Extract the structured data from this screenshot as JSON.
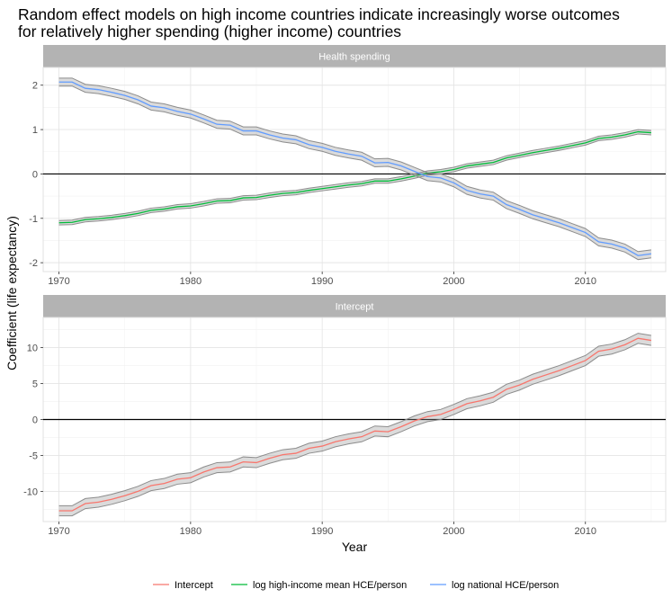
{
  "title_line1": "Random effect models on high income countries indicate increasingly worse outcomes",
  "title_line2": "for relatively higher spending (higher income) countries",
  "xlabel": "Year",
  "ylabel": "Coefficient (life expectancy)",
  "legend": [
    {
      "label": "Intercept",
      "color": "#F8766D"
    },
    {
      "label": "log high-income mean HCE/person",
      "color": "#00BA38"
    },
    {
      "label": "log national HCE/person",
      "color": "#619CFF"
    }
  ],
  "chart_data": [
    {
      "type": "line",
      "panel_label": "Health spending",
      "x_ticks": [
        "1970",
        "1980",
        "1990",
        "2000",
        "2010"
      ],
      "y_ticks": [
        "-2",
        "-1",
        "0",
        "1",
        "2"
      ],
      "xlim": [
        1968.8,
        2016.1
      ],
      "ylim": [
        -2.2,
        2.4
      ],
      "hline": 0,
      "grid": true,
      "x": [
        1970,
        1971,
        1972,
        1973,
        1974,
        1975,
        1976,
        1977,
        1978,
        1979,
        1980,
        1981,
        1982,
        1983,
        1984,
        1985,
        1986,
        1987,
        1988,
        1989,
        1990,
        1991,
        1992,
        1993,
        1994,
        1995,
        1996,
        1997,
        1998,
        1999,
        2000,
        2001,
        2002,
        2003,
        2004,
        2005,
        2006,
        2007,
        2008,
        2009,
        2010,
        2011,
        2012,
        2013,
        2014,
        2015
      ],
      "series": [
        {
          "name": "log high-income mean HCE/person",
          "color": "#00BA38",
          "band_halfwidth": 0.05,
          "values": [
            -1.1,
            -1.09,
            -1.03,
            -1.01,
            -0.98,
            -0.94,
            -0.89,
            -0.82,
            -0.79,
            -0.74,
            -0.72,
            -0.67,
            -0.61,
            -0.6,
            -0.54,
            -0.53,
            -0.48,
            -0.44,
            -0.42,
            -0.37,
            -0.33,
            -0.29,
            -0.25,
            -0.22,
            -0.16,
            -0.16,
            -0.11,
            -0.05,
            0.02,
            0.05,
            0.1,
            0.18,
            0.22,
            0.26,
            0.36,
            0.42,
            0.48,
            0.53,
            0.58,
            0.64,
            0.7,
            0.8,
            0.83,
            0.88,
            0.95,
            0.93
          ]
        },
        {
          "name": "log national HCE/person",
          "color": "#619CFF",
          "band_halfwidth": 0.09,
          "values": [
            2.07,
            2.07,
            1.93,
            1.9,
            1.84,
            1.77,
            1.67,
            1.53,
            1.49,
            1.41,
            1.35,
            1.24,
            1.12,
            1.1,
            0.97,
            0.97,
            0.88,
            0.81,
            0.77,
            0.66,
            0.6,
            0.51,
            0.45,
            0.4,
            0.25,
            0.26,
            0.18,
            0.06,
            -0.06,
            -0.09,
            -0.2,
            -0.37,
            -0.45,
            -0.5,
            -0.69,
            -0.8,
            -0.92,
            -1.01,
            -1.1,
            -1.21,
            -1.32,
            -1.53,
            -1.58,
            -1.67,
            -1.84,
            -1.8
          ]
        }
      ]
    },
    {
      "type": "line",
      "panel_label": "Intercept",
      "x_ticks": [
        "1970",
        "1980",
        "1990",
        "2000",
        "2010"
      ],
      "y_ticks": [
        "-10",
        "-5",
        "0",
        "5",
        "10"
      ],
      "xlim": [
        1968.8,
        2016.1
      ],
      "ylim": [
        -14.2,
        14.2
      ],
      "hline": 0,
      "grid": true,
      "x": [
        1970,
        1971,
        1972,
        1973,
        1974,
        1975,
        1976,
        1977,
        1978,
        1979,
        1980,
        1981,
        1982,
        1983,
        1984,
        1985,
        1986,
        1987,
        1988,
        1989,
        1990,
        1991,
        1992,
        1993,
        1994,
        1995,
        1996,
        1997,
        1998,
        1999,
        2000,
        2001,
        2002,
        2003,
        2004,
        2005,
        2006,
        2007,
        2008,
        2009,
        2010,
        2011,
        2012,
        2013,
        2014,
        2015
      ],
      "series": [
        {
          "name": "Intercept",
          "color": "#F8766D",
          "band_halfwidth": 0.7,
          "values": [
            -12.7,
            -12.7,
            -11.7,
            -11.5,
            -11.1,
            -10.6,
            -10,
            -9.2,
            -8.9,
            -8.3,
            -8.1,
            -7.3,
            -6.7,
            -6.6,
            -5.9,
            -6,
            -5.4,
            -4.9,
            -4.7,
            -4,
            -3.7,
            -3.1,
            -2.7,
            -2.4,
            -1.6,
            -1.7,
            -1,
            -0.2,
            0.4,
            0.7,
            1.4,
            2.2,
            2.6,
            3.1,
            4.2,
            4.8,
            5.6,
            6.2,
            6.8,
            7.5,
            8.2,
            9.5,
            9.8,
            10.4,
            11.3,
            11
          ]
        }
      ]
    }
  ]
}
